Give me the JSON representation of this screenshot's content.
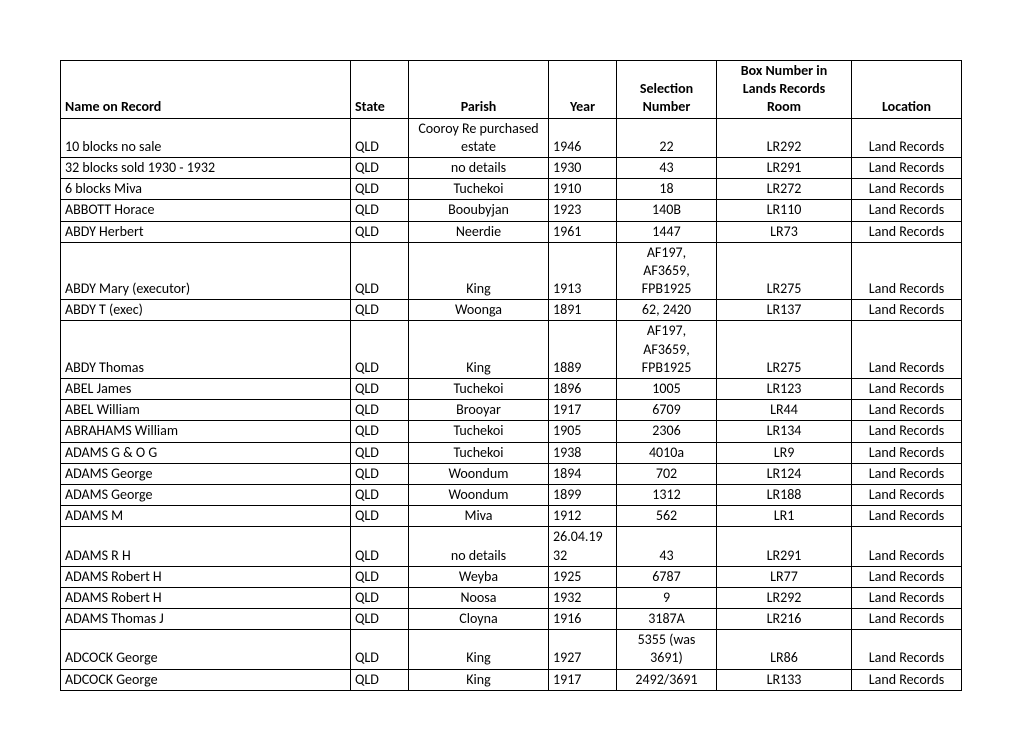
{
  "columns": [
    {
      "key": "name",
      "label": "Name on Record",
      "class": "col-name"
    },
    {
      "key": "state",
      "label": "State",
      "class": "col-state"
    },
    {
      "key": "parish",
      "label": "Parish",
      "class": "col-parish"
    },
    {
      "key": "year",
      "label": "Year",
      "class": "col-year"
    },
    {
      "key": "sel",
      "label": "Selection\nNumber",
      "class": "col-sel"
    },
    {
      "key": "box",
      "label": "Box Number in\nLands Records\nRoom",
      "class": "col-box"
    },
    {
      "key": "loc",
      "label": "Location",
      "class": "col-loc"
    }
  ],
  "rows": [
    {
      "name": "10 blocks no sale",
      "state": "QLD",
      "parish": "Cooroy Re purchased\nestate",
      "year": "1946",
      "sel": "22",
      "box": "LR292",
      "loc": "Land Records"
    },
    {
      "name": "32 blocks sold 1930 - 1932",
      "state": "QLD",
      "parish": "no details",
      "year": "1930",
      "sel": "43",
      "box": "LR291",
      "loc": "Land Records"
    },
    {
      "name": "6 blocks Miva",
      "state": "QLD",
      "parish": "Tuchekoi",
      "year": "1910",
      "sel": "18",
      "box": "LR272",
      "loc": "Land Records"
    },
    {
      "name": "ABBOTT Horace",
      "state": "QLD",
      "parish": "Booubyjan",
      "year": "1923",
      "sel": "140B",
      "box": "LR110",
      "loc": "Land Records"
    },
    {
      "name": "ABDY Herbert",
      "state": "QLD",
      "parish": "Neerdie",
      "year": "1961",
      "sel": "1447",
      "box": "LR73",
      "loc": "Land Records"
    },
    {
      "name": "ABDY Mary  (executor)",
      "state": "QLD",
      "parish": "King",
      "year": "1913",
      "sel": "AF197,\nAF3659,\nFPB1925",
      "box": "LR275",
      "loc": "Land Records"
    },
    {
      "name": "ABDY T  (exec)",
      "state": "QLD",
      "parish": "Woonga",
      "year": "1891",
      "sel": "62, 2420",
      "box": "LR137",
      "loc": "Land Records"
    },
    {
      "name": "ABDY Thomas",
      "state": "QLD",
      "parish": "King",
      "year": "1889",
      "sel": "AF197,\nAF3659,\nFPB1925",
      "box": "LR275",
      "loc": "Land Records"
    },
    {
      "name": "ABEL James",
      "state": "QLD",
      "parish": "Tuchekoi",
      "year": "1896",
      "sel": "1005",
      "box": "LR123",
      "loc": "Land Records"
    },
    {
      "name": "ABEL William",
      "state": "QLD",
      "parish": "Brooyar",
      "year": "1917",
      "sel": "6709",
      "box": "LR44",
      "loc": "Land Records"
    },
    {
      "name": "ABRAHAMS William",
      "state": "QLD",
      "parish": "Tuchekoi",
      "year": "1905",
      "sel": "2306",
      "box": "LR134",
      "loc": "Land Records"
    },
    {
      "name": "ADAMS G & O G",
      "state": "QLD",
      "parish": "Tuchekoi",
      "year": "1938",
      "sel": "4010a",
      "box": "LR9",
      "loc": "Land Records"
    },
    {
      "name": "ADAMS George",
      "state": "QLD",
      "parish": "Woondum",
      "year": "1894",
      "sel": "702",
      "box": "LR124",
      "loc": "Land Records"
    },
    {
      "name": "ADAMS George",
      "state": "QLD",
      "parish": "Woondum",
      "year": "1899",
      "sel": "1312",
      "box": "LR188",
      "loc": "Land Records"
    },
    {
      "name": "ADAMS M",
      "state": "QLD",
      "parish": "Miva",
      "year": "1912",
      "sel": "562",
      "box": "LR1",
      "loc": "Land Records"
    },
    {
      "name": "ADAMS R H",
      "state": "QLD",
      "parish": "no details",
      "year": "26.04.19\n32",
      "sel": "43",
      "box": "LR291",
      "loc": "Land Records"
    },
    {
      "name": "ADAMS Robert H",
      "state": "QLD",
      "parish": "Weyba",
      "year": "1925",
      "sel": "6787",
      "box": "LR77",
      "loc": "Land Records"
    },
    {
      "name": "ADAMS Robert H",
      "state": "QLD",
      "parish": "Noosa",
      "year": "1932",
      "sel": "9",
      "box": "LR292",
      "loc": "Land Records"
    },
    {
      "name": "ADAMS Thomas J",
      "state": "QLD",
      "parish": "Cloyna",
      "year": "1916",
      "sel": "3187A",
      "box": "LR216",
      "loc": "Land Records"
    },
    {
      "name": "ADCOCK George",
      "state": "QLD",
      "parish": "King",
      "year": "1927",
      "sel": "5355 (was\n3691)",
      "box": "LR86",
      "loc": "Land Records"
    },
    {
      "name": "ADCOCK George",
      "state": "QLD",
      "parish": "King",
      "year": "1917",
      "sel": "2492/3691",
      "box": "LR133",
      "loc": "Land Records"
    }
  ]
}
